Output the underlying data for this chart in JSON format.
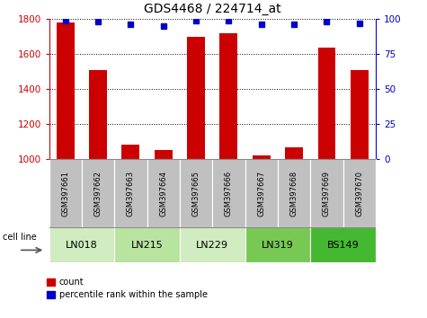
{
  "title": "GDS4468 / 224714_at",
  "samples": [
    "GSM397661",
    "GSM397662",
    "GSM397663",
    "GSM397664",
    "GSM397665",
    "GSM397666",
    "GSM397667",
    "GSM397668",
    "GSM397669",
    "GSM397670"
  ],
  "counts": [
    1780,
    1510,
    1080,
    1050,
    1700,
    1720,
    1020,
    1065,
    1635,
    1510
  ],
  "percentile_ranks": [
    99,
    98,
    96,
    95,
    99,
    99,
    96,
    96,
    98,
    97
  ],
  "ylim_left": [
    1000,
    1800
  ],
  "ylim_right": [
    0,
    100
  ],
  "yticks_left": [
    1000,
    1200,
    1400,
    1600,
    1800
  ],
  "yticks_right": [
    0,
    25,
    50,
    75,
    100
  ],
  "cell_lines": [
    {
      "name": "LN018",
      "samples": [
        0,
        1
      ],
      "color": "#d0ecc0"
    },
    {
      "name": "LN215",
      "samples": [
        2,
        3
      ],
      "color": "#b8e4a0"
    },
    {
      "name": "LN229",
      "samples": [
        4,
        5
      ],
      "color": "#d0ecc0"
    },
    {
      "name": "LN319",
      "samples": [
        6,
        7
      ],
      "color": "#78c854"
    },
    {
      "name": "BS149",
      "samples": [
        8,
        9
      ],
      "color": "#44b830"
    }
  ],
  "bar_color": "#cc0000",
  "dot_color": "#0000cc",
  "tick_color_left": "#cc0000",
  "tick_color_right": "#0000cc",
  "sample_bg_color": "#c0c0c0"
}
